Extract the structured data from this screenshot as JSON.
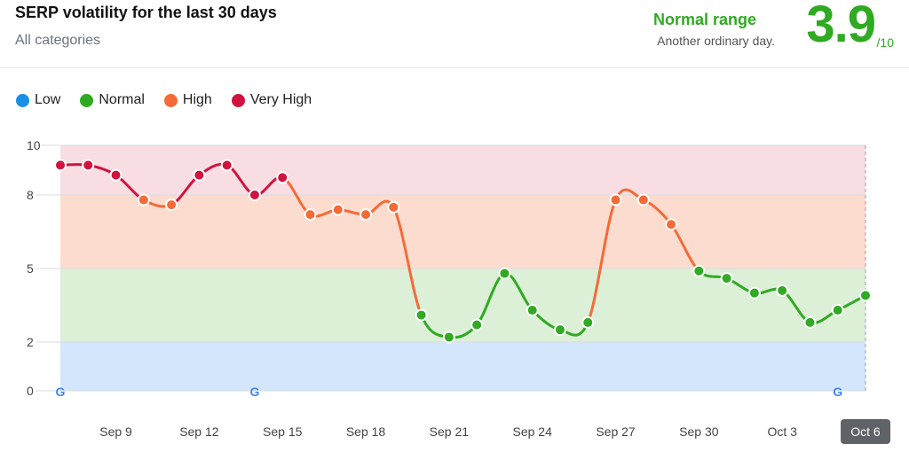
{
  "header": {
    "title": "SERP volatility for the last 30 days",
    "subtitle": "All categories",
    "range_label": "Normal range",
    "range_desc": "Another ordinary day.",
    "score": "3.9",
    "score_max": "/10"
  },
  "legend": [
    {
      "label": "Low",
      "color": "#1a8fe8"
    },
    {
      "label": "Normal",
      "color": "#2faa22"
    },
    {
      "label": "High",
      "color": "#f56a36"
    },
    {
      "label": "Very High",
      "color": "#d1133f"
    }
  ],
  "chart_data": {
    "type": "line",
    "y_ticks": [
      0,
      2,
      5,
      8,
      10
    ],
    "ylim": [
      0,
      10
    ],
    "bands": [
      {
        "name": "Low",
        "from": 0,
        "to": 2,
        "color": "#d4e6fc"
      },
      {
        "name": "Normal",
        "from": 2,
        "to": 5,
        "color": "#dcefd7"
      },
      {
        "name": "High",
        "from": 5,
        "to": 8,
        "color": "#fcdccf"
      },
      {
        "name": "Very High",
        "from": 8,
        "to": 10,
        "color": "#f8dde2"
      }
    ],
    "x_labels": [
      "Sep 9",
      "Sep 12",
      "Sep 15",
      "Sep 18",
      "Sep 21",
      "Sep 24",
      "Sep 27",
      "Sep 30",
      "Oct 3",
      "Oct 6"
    ],
    "x_label_index": [
      2,
      5,
      8,
      11,
      14,
      17,
      20,
      23,
      26,
      29
    ],
    "highlighted_label": "Oct 6",
    "values": [
      9.2,
      9.2,
      8.8,
      7.8,
      7.6,
      8.8,
      9.2,
      8.0,
      8.7,
      7.2,
      7.4,
      7.2,
      7.5,
      3.1,
      2.2,
      2.7,
      4.8,
      3.3,
      2.5,
      2.8,
      7.8,
      7.8,
      6.8,
      4.9,
      4.6,
      4.0,
      4.1,
      2.8,
      3.3,
      3.9
    ],
    "google_marker_index": [
      0,
      7,
      28
    ]
  }
}
